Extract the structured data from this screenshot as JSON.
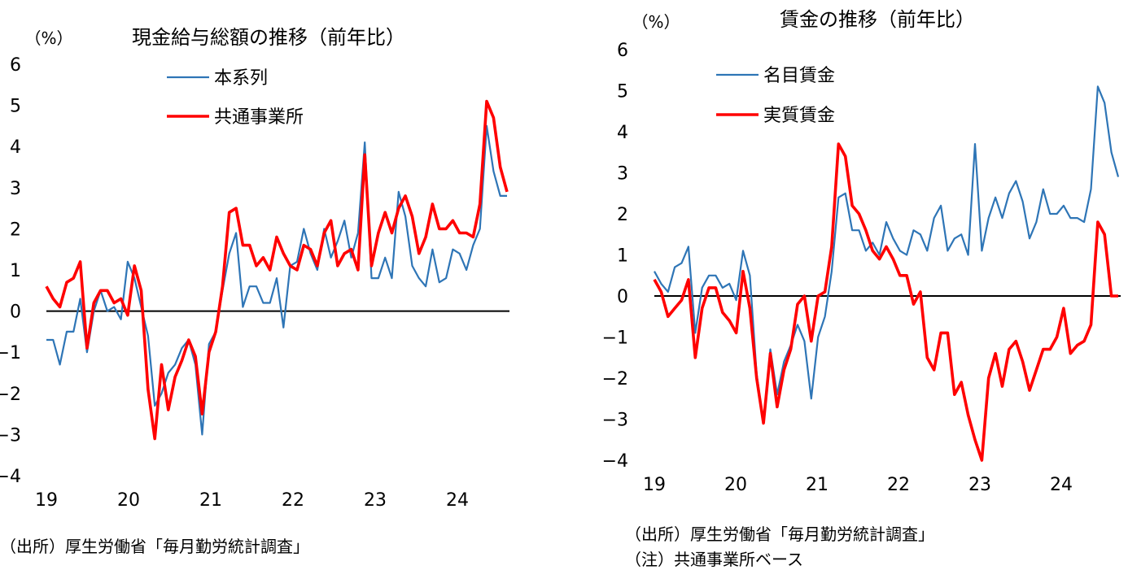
{
  "chart_data": [
    {
      "type": "line",
      "title": "現金給与総額の推移（前年比）",
      "unit_label": "（%）",
      "ylim": [
        -4,
        6
      ],
      "yticks": [
        "6",
        "5",
        "4",
        "3",
        "2",
        "1",
        "0",
        "−1",
        "−2",
        "−3",
        "−4"
      ],
      "xtick_labels": [
        "19",
        "20",
        "21",
        "22",
        "23",
        "24"
      ],
      "legend_placement": "top-center",
      "zero_line": true,
      "source_note": "（出所）厚生労働省「毎月勤労統計調査」",
      "colors": {
        "series_1": "#2E75B6",
        "series_2": "#FF0000"
      },
      "series": [
        {
          "name": "本系列",
          "values": [
            -0.7,
            -0.7,
            -1.3,
            -0.5,
            -0.5,
            0.3,
            -1.0,
            0.0,
            0.5,
            0.0,
            0.1,
            -0.2,
            1.2,
            0.8,
            0.1,
            -0.6,
            -2.3,
            -2.0,
            -1.5,
            -1.3,
            -0.9,
            -0.7,
            -1.3,
            -3.0,
            -0.8,
            -0.5,
            0.5,
            1.4,
            1.9,
            0.1,
            0.6,
            0.6,
            0.2,
            0.2,
            0.8,
            -0.4,
            1.1,
            1.2,
            2.0,
            1.4,
            1.0,
            2.0,
            1.3,
            1.7,
            2.2,
            1.3,
            1.9,
            4.1,
            0.8,
            0.8,
            1.3,
            0.8,
            2.9,
            2.3,
            1.1,
            0.8,
            0.6,
            1.5,
            0.7,
            0.8,
            1.5,
            1.4,
            1.0,
            1.6,
            2.0,
            4.5,
            3.4,
            2.8,
            2.8
          ]
        },
        {
          "name": "共通事業所",
          "values": [
            0.6,
            0.3,
            0.1,
            0.7,
            0.8,
            1.2,
            -0.9,
            0.2,
            0.5,
            0.5,
            0.2,
            0.3,
            -0.1,
            1.1,
            0.5,
            -1.9,
            -3.1,
            -1.3,
            -2.4,
            -1.6,
            -1.2,
            -0.7,
            -1.1,
            -2.5,
            -1.0,
            -0.5,
            0.6,
            2.4,
            2.5,
            1.6,
            1.6,
            1.1,
            1.3,
            1.0,
            1.8,
            1.4,
            1.1,
            1.0,
            1.6,
            1.5,
            1.1,
            1.9,
            2.2,
            1.1,
            1.4,
            1.5,
            1.0,
            3.8,
            1.1,
            1.9,
            2.4,
            1.9,
            2.5,
            2.8,
            2.3,
            1.4,
            1.8,
            2.6,
            2.0,
            2.0,
            2.2,
            1.9,
            1.9,
            1.8,
            2.6,
            5.1,
            4.7,
            3.5,
            2.9
          ]
        }
      ]
    },
    {
      "type": "line",
      "title": "賃金の推移（前年比）",
      "unit_label": "（%）",
      "ylim": [
        -4,
        6
      ],
      "yticks": [
        "6",
        "5",
        "4",
        "3",
        "2",
        "1",
        "0",
        "−1",
        "−2",
        "−3",
        "−4"
      ],
      "xtick_labels": [
        "19",
        "20",
        "21",
        "22",
        "23",
        "24"
      ],
      "legend_placement": "top-center",
      "zero_line": true,
      "source_note": "（出所）厚生労働省「毎月勤労統計調査」",
      "footnote": "（注）共通事業所ベース",
      "colors": {
        "series_1": "#2E75B6",
        "series_2": "#FF0000"
      },
      "series": [
        {
          "name": "名目賃金",
          "values": [
            0.6,
            0.3,
            0.1,
            0.7,
            0.8,
            1.2,
            -0.9,
            0.2,
            0.5,
            0.5,
            0.2,
            0.3,
            -0.1,
            1.1,
            0.5,
            -1.9,
            -3.1,
            -1.3,
            -2.4,
            -1.6,
            -1.2,
            -0.7,
            -1.1,
            -2.5,
            -1.0,
            -0.5,
            0.6,
            2.4,
            2.5,
            1.6,
            1.6,
            1.1,
            1.3,
            1.0,
            1.8,
            1.4,
            1.1,
            1.0,
            1.6,
            1.5,
            1.1,
            1.9,
            2.2,
            1.1,
            1.4,
            1.5,
            1.0,
            3.7,
            1.1,
            1.9,
            2.4,
            1.9,
            2.5,
            2.8,
            2.3,
            1.4,
            1.8,
            2.6,
            2.0,
            2.0,
            2.2,
            1.9,
            1.9,
            1.8,
            2.6,
            5.1,
            4.7,
            3.5,
            2.9
          ]
        },
        {
          "name": "実質賃金",
          "values": [
            0.4,
            0.1,
            -0.5,
            -0.3,
            -0.1,
            0.4,
            -1.5,
            -0.3,
            0.2,
            0.2,
            -0.4,
            -0.6,
            -0.9,
            0.6,
            -0.3,
            -2.0,
            -3.1,
            -1.4,
            -2.7,
            -1.8,
            -1.3,
            -0.2,
            0.0,
            -1.1,
            0.0,
            0.1,
            1.2,
            3.7,
            3.4,
            2.2,
            2.0,
            1.6,
            1.1,
            0.9,
            1.2,
            0.9,
            0.5,
            0.5,
            -0.2,
            0.1,
            -1.5,
            -1.8,
            -0.9,
            -0.9,
            -2.4,
            -2.1,
            -2.9,
            -3.5,
            -4.0,
            -2.0,
            -1.4,
            -2.2,
            -1.3,
            -1.1,
            -1.6,
            -2.3,
            -1.8,
            -1.3,
            -1.3,
            -1.0,
            -0.3,
            -1.4,
            -1.2,
            -1.1,
            -0.7,
            1.8,
            1.5,
            0.0,
            0.0
          ]
        }
      ]
    }
  ]
}
